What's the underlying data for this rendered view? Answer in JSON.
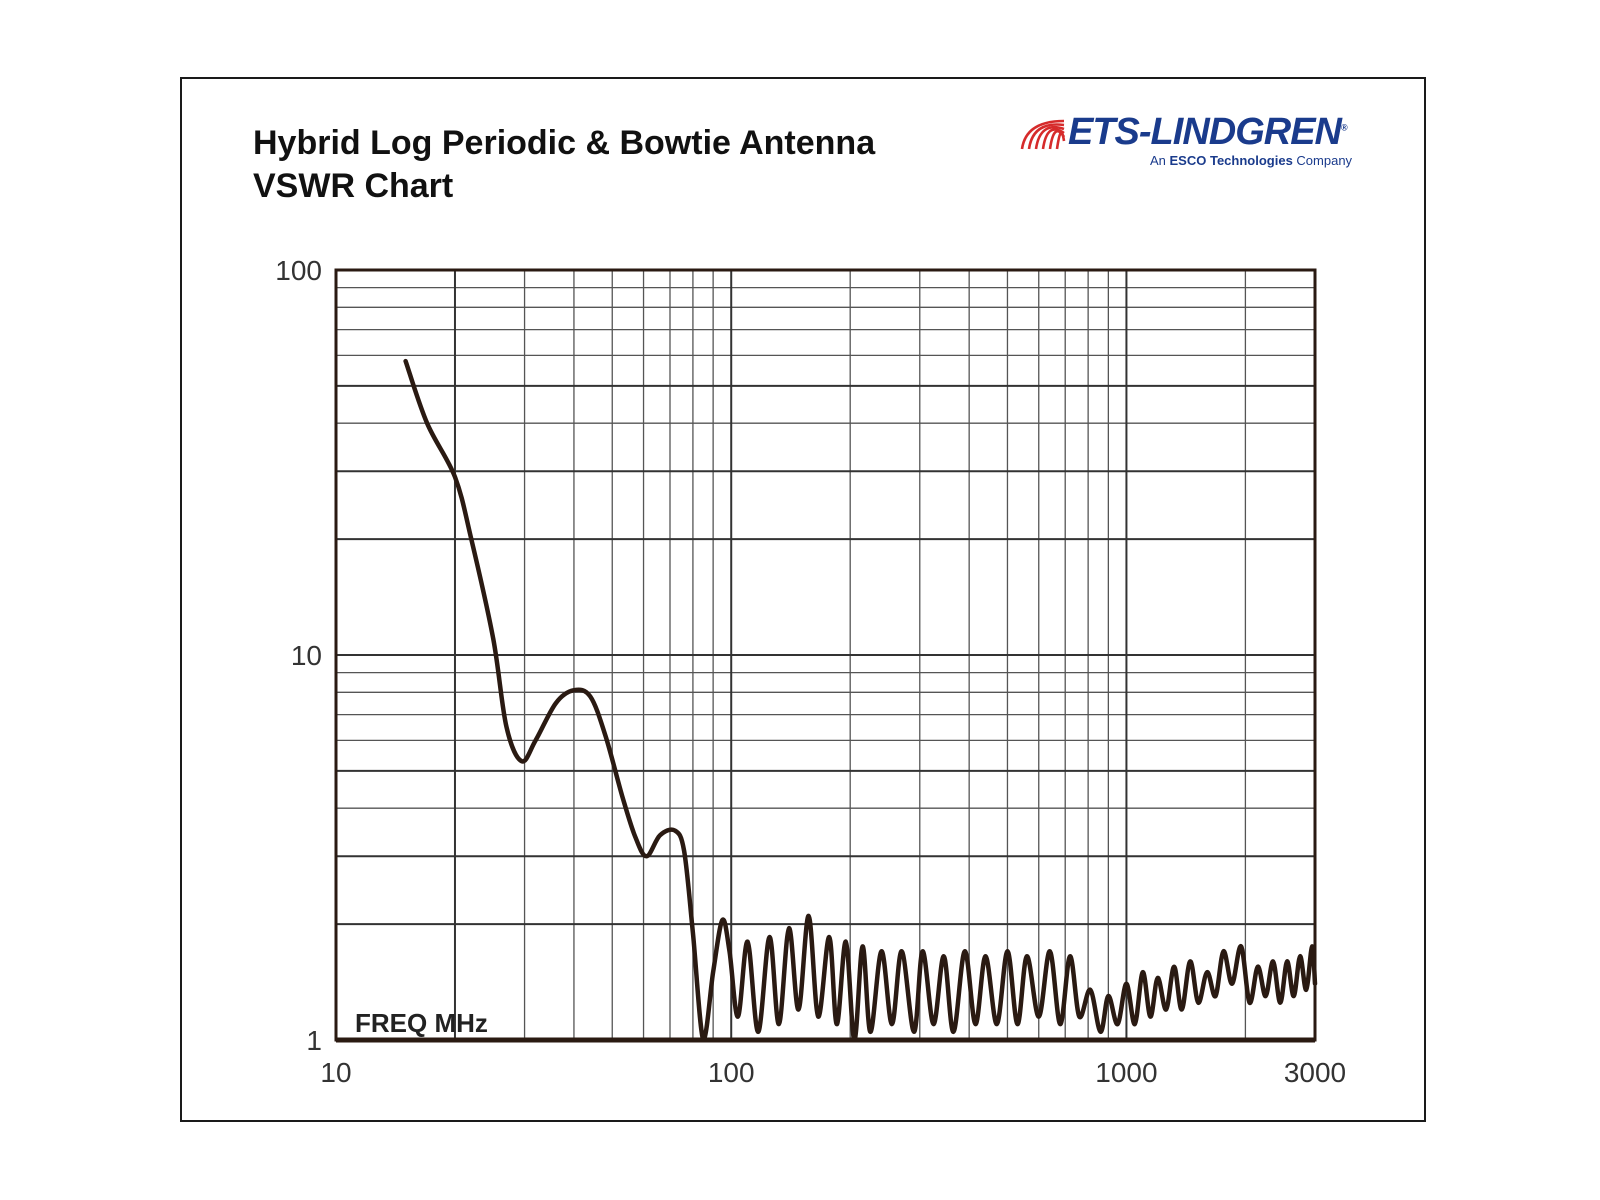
{
  "header": {
    "title_line1": "Hybrid Log Periodic & Bowtie Antenna",
    "title_line2": "VSWR Chart"
  },
  "logo": {
    "name": "ETS-LINDGREN",
    "tagline_prefix": "An ",
    "tagline_bold": "ESCO Technologies",
    "tagline_suffix": " Company",
    "color": "#1a3b8c",
    "mark_color": "#d62b2b"
  },
  "chart_data": {
    "type": "line",
    "title": "Hybrid Log Periodic & Bowtie Antenna VSWR Chart",
    "xlabel": "FREQ MHz",
    "ylabel": "",
    "x_scale": "log",
    "y_scale": "log",
    "xlim": [
      10,
      3000
    ],
    "ylim": [
      1,
      100
    ],
    "x_ticks": [
      {
        "value": 10,
        "label": "10"
      },
      {
        "value": 100,
        "label": "100"
      },
      {
        "value": 1000,
        "label": "1000"
      },
      {
        "value": 3000,
        "label": "3000"
      }
    ],
    "y_ticks": [
      {
        "value": 1,
        "label": "1"
      },
      {
        "value": 10,
        "label": "10"
      },
      {
        "value": 100,
        "label": "100"
      }
    ],
    "grid": true,
    "line_color": "#2a1a12",
    "series": [
      {
        "x": [
          15,
          17,
          20,
          22,
          25,
          27,
          29.5,
          32,
          36,
          40,
          44,
          48,
          53,
          57,
          61,
          66,
          72,
          76,
          80,
          85,
          90,
          95,
          99,
          104,
          110,
          117,
          125,
          132,
          140,
          148,
          157,
          166,
          177,
          185,
          195,
          205,
          215,
          225,
          240,
          255,
          270,
          290,
          305,
          325,
          345,
          365,
          390,
          415,
          440,
          470,
          500,
          530,
          560,
          600,
          640,
          680,
          720,
          760,
          810,
          860,
          900,
          950,
          1000,
          1050,
          1100,
          1150,
          1200,
          1260,
          1320,
          1380,
          1450,
          1520,
          1600,
          1680,
          1760,
          1850,
          1950,
          2050,
          2150,
          2250,
          2350,
          2450,
          2550,
          2650,
          2750,
          2850,
          2950,
          3000
        ],
        "y": [
          58,
          40,
          29,
          20,
          11,
          6.5,
          5.3,
          6,
          7.5,
          8.1,
          7.8,
          6.2,
          4.3,
          3.4,
          3.0,
          3.4,
          3.5,
          3.1,
          1.9,
          1.0,
          1.5,
          2.05,
          1.7,
          1.15,
          1.8,
          1.05,
          1.85,
          1.1,
          1.95,
          1.2,
          2.1,
          1.15,
          1.85,
          1.1,
          1.8,
          1.0,
          1.75,
          1.05,
          1.7,
          1.1,
          1.7,
          1.05,
          1.7,
          1.1,
          1.65,
          1.05,
          1.7,
          1.1,
          1.65,
          1.1,
          1.7,
          1.1,
          1.65,
          1.15,
          1.7,
          1.1,
          1.65,
          1.15,
          1.35,
          1.05,
          1.3,
          1.1,
          1.4,
          1.1,
          1.5,
          1.15,
          1.45,
          1.2,
          1.55,
          1.2,
          1.6,
          1.25,
          1.5,
          1.3,
          1.7,
          1.4,
          1.75,
          1.25,
          1.55,
          1.3,
          1.6,
          1.25,
          1.6,
          1.3,
          1.65,
          1.35,
          1.75,
          1.4
        ]
      }
    ]
  }
}
